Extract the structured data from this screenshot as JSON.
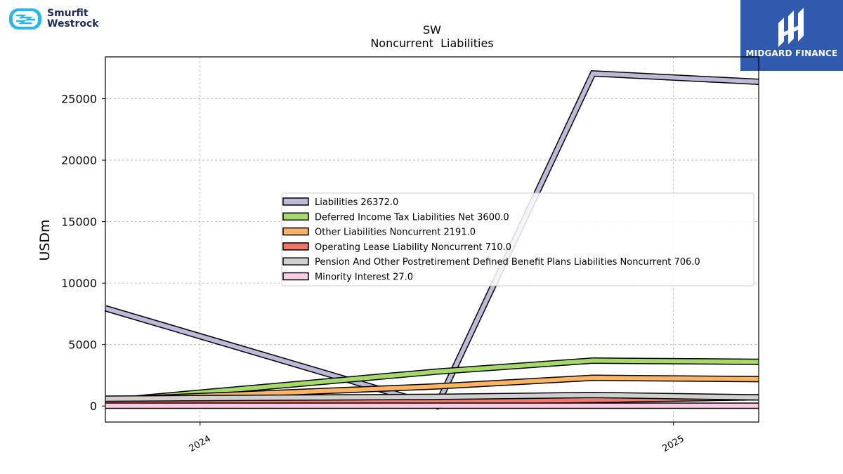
{
  "brand_left": {
    "line1": "Smurfit",
    "line2": "Westrock",
    "icon": "smurfit-westrock-logo-icon",
    "color": "#29b6f0"
  },
  "brand_right": {
    "name": "MIDGARD FINANCE",
    "icon": "midgard-logo-icon",
    "background": "#2f5aae"
  },
  "chart_data": {
    "type": "line",
    "title": "SW",
    "subtitle": "Noncurrent  Liabilities",
    "ylabel": "USDm",
    "xlabel": "",
    "x_ticks": [
      "2024",
      "2025"
    ],
    "x_range": [
      2023.8,
      2025.18
    ],
    "x": [
      2023.8,
      2024.5,
      2024.83,
      2025.18
    ],
    "ylim": [
      -1300,
      28400
    ],
    "y_ticks": [
      0,
      5000,
      10000,
      15000,
      20000,
      25000
    ],
    "grid": true,
    "legend_position": "center-right",
    "series": [
      {
        "name": "Liabilities",
        "legend": "Liabilities  26372.0",
        "color": "#bcbad8",
        "values": [
          7950,
          0,
          27050,
          26372
        ]
      },
      {
        "name": "Deferred Income Tax Liabilities Net",
        "legend": "Deferred Income Tax Liabilities Net  3600.0",
        "color": "#a6d96a",
        "values": [
          400,
          2800,
          3700,
          3600
        ]
      },
      {
        "name": "Other Liabilities Noncurrent",
        "legend": "Other Liabilities Noncurrent  2191.0",
        "color": "#fdb462",
        "values": [
          500,
          1600,
          2300,
          2191
        ]
      },
      {
        "name": "Operating Lease Liability Noncurrent",
        "legend": "Operating Lease Liability Noncurrent  710.0",
        "color": "#f0776a",
        "values": [
          200,
          350,
          500,
          710
        ]
      },
      {
        "name": "Pension And Other Postretirement Defined Benefit Plans Liabilities Noncurrent",
        "legend": "Pension And Other Postretirement Defined Benefit Plans Liabilities Noncurrent  706.0",
        "color": "#d0d0d0",
        "values": [
          600,
          750,
          900,
          706
        ]
      },
      {
        "name": "Minority Interest",
        "legend": "Minority Interest  27.0",
        "color": "#fccde5",
        "values": [
          30,
          30,
          30,
          27
        ]
      }
    ]
  }
}
